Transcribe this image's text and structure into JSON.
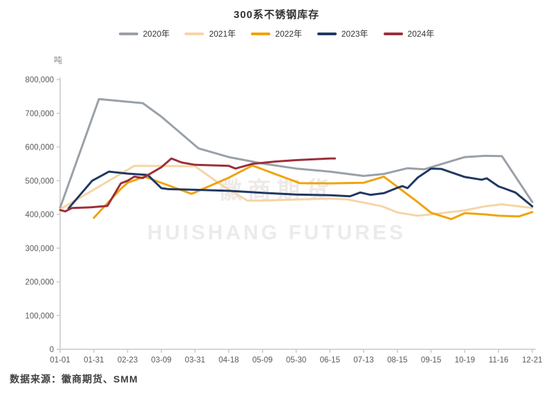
{
  "title": "300系不锈钢库存",
  "source_note": "数据来源：徽商期货、SMM",
  "watermark": {
    "line1": "徽商期货",
    "line2": "HUISHANG FUTURES"
  },
  "colors": {
    "axis": "#c9c9c9",
    "tick_text": "#595959",
    "title_text": "#333333"
  },
  "chart_data": {
    "type": "line",
    "title": "300系不锈钢库存",
    "unit_label": "吨",
    "grid": false,
    "legend_position": "top",
    "ylim": [
      0,
      800000
    ],
    "y_ticks": [
      {
        "value": 0,
        "label": "0"
      },
      {
        "value": 100000,
        "label": "100,000"
      },
      {
        "value": 200000,
        "label": "200,000"
      },
      {
        "value": 300000,
        "label": "300,000"
      },
      {
        "value": 400000,
        "label": "400,000"
      },
      {
        "value": 500000,
        "label": "500,000"
      },
      {
        "value": 600000,
        "label": "600,000"
      },
      {
        "value": 700000,
        "label": "700,000"
      },
      {
        "value": 800000,
        "label": "800,000"
      }
    ],
    "x_tick_labels": [
      "01-01",
      "01-31",
      "02-23",
      "03-09",
      "03-31",
      "04-18",
      "05-09",
      "05-30",
      "06-15",
      "07-13",
      "08-15",
      "09-15",
      "10-19",
      "11-16",
      "12-21"
    ],
    "series": [
      {
        "name": "2020年",
        "color": "#99A0A8",
        "width": 3,
        "points": [
          [
            0,
            420000
          ],
          [
            1.15,
            742000
          ],
          [
            2.45,
            730000
          ],
          [
            3.0,
            690000
          ],
          [
            4.1,
            596000
          ],
          [
            5.0,
            570000
          ],
          [
            6.0,
            551000
          ],
          [
            7.0,
            536000
          ],
          [
            8.0,
            527000
          ],
          [
            9.0,
            514000
          ],
          [
            9.6,
            520000
          ],
          [
            10.3,
            537000
          ],
          [
            10.8,
            534000
          ],
          [
            12.0,
            570000
          ],
          [
            12.6,
            574000
          ],
          [
            13.1,
            573000
          ],
          [
            14.0,
            437000
          ]
        ]
      },
      {
        "name": "2021年",
        "color": "#F6D5A5",
        "width": 3,
        "points": [
          [
            0,
            415000
          ],
          [
            2.2,
            544000
          ],
          [
            4.0,
            543000
          ],
          [
            4.8,
            486000
          ],
          [
            5.55,
            441000
          ],
          [
            6.0,
            441000
          ],
          [
            7.0,
            444000
          ],
          [
            8.0,
            447000
          ],
          [
            8.5,
            445000
          ],
          [
            9.55,
            424000
          ],
          [
            10.0,
            406000
          ],
          [
            10.6,
            396000
          ],
          [
            11.0,
            400000
          ],
          [
            12.0,
            412000
          ],
          [
            12.6,
            424000
          ],
          [
            13.1,
            430000
          ],
          [
            14.0,
            419000
          ]
        ]
      },
      {
        "name": "2022年",
        "color": "#F0A30A",
        "width": 3,
        "points": [
          [
            1.0,
            390000
          ],
          [
            1.8,
            476000
          ],
          [
            2.0,
            494000
          ],
          [
            2.5,
            512000
          ],
          [
            3.9,
            461000
          ],
          [
            5.0,
            509000
          ],
          [
            5.7,
            545000
          ],
          [
            7.1,
            493000
          ],
          [
            8.0,
            492000
          ],
          [
            9.0,
            494000
          ],
          [
            9.6,
            512000
          ],
          [
            10.6,
            437000
          ],
          [
            11.0,
            405000
          ],
          [
            11.6,
            386000
          ],
          [
            12.0,
            404000
          ],
          [
            12.6,
            400000
          ],
          [
            13.0,
            396000
          ],
          [
            13.6,
            394000
          ],
          [
            14.0,
            407000
          ]
        ]
      },
      {
        "name": "2023年",
        "color": "#1F3864",
        "width": 3,
        "points": [
          [
            0.25,
            418000
          ],
          [
            0.95,
            500000
          ],
          [
            1.45,
            527000
          ],
          [
            2.0,
            521000
          ],
          [
            2.6,
            517000
          ],
          [
            3.0,
            478000
          ],
          [
            3.2,
            475000
          ],
          [
            4.0,
            473000
          ],
          [
            5.0,
            470000
          ],
          [
            6.0,
            464000
          ],
          [
            7.0,
            459000
          ],
          [
            8.0,
            457000
          ],
          [
            8.6,
            454000
          ],
          [
            8.9,
            465000
          ],
          [
            9.2,
            458000
          ],
          [
            9.6,
            463000
          ],
          [
            10.0,
            479000
          ],
          [
            10.15,
            484000
          ],
          [
            10.3,
            478000
          ],
          [
            10.6,
            509000
          ],
          [
            11.0,
            536000
          ],
          [
            11.3,
            535000
          ],
          [
            12.0,
            511000
          ],
          [
            12.5,
            503000
          ],
          [
            12.65,
            507000
          ],
          [
            13.0,
            483000
          ],
          [
            13.15,
            478000
          ],
          [
            13.5,
            465000
          ],
          [
            14.0,
            424000
          ]
        ]
      },
      {
        "name": "2024年",
        "color": "#9C2F3B",
        "width": 3,
        "points": [
          [
            0,
            413000
          ],
          [
            0.15,
            409000
          ],
          [
            0.35,
            419000
          ],
          [
            0.9,
            421000
          ],
          [
            1.4,
            425000
          ],
          [
            1.8,
            492000
          ],
          [
            2.0,
            500000
          ],
          [
            2.2,
            512000
          ],
          [
            2.45,
            508000
          ],
          [
            3.0,
            540000
          ],
          [
            3.3,
            566000
          ],
          [
            3.6,
            554000
          ],
          [
            4.0,
            547000
          ],
          [
            5.0,
            544000
          ],
          [
            5.2,
            536000
          ],
          [
            5.7,
            550000
          ],
          [
            6.4,
            557000
          ],
          [
            7.0,
            561000
          ],
          [
            8.0,
            566000
          ],
          [
            8.15,
            566000
          ]
        ]
      }
    ]
  }
}
